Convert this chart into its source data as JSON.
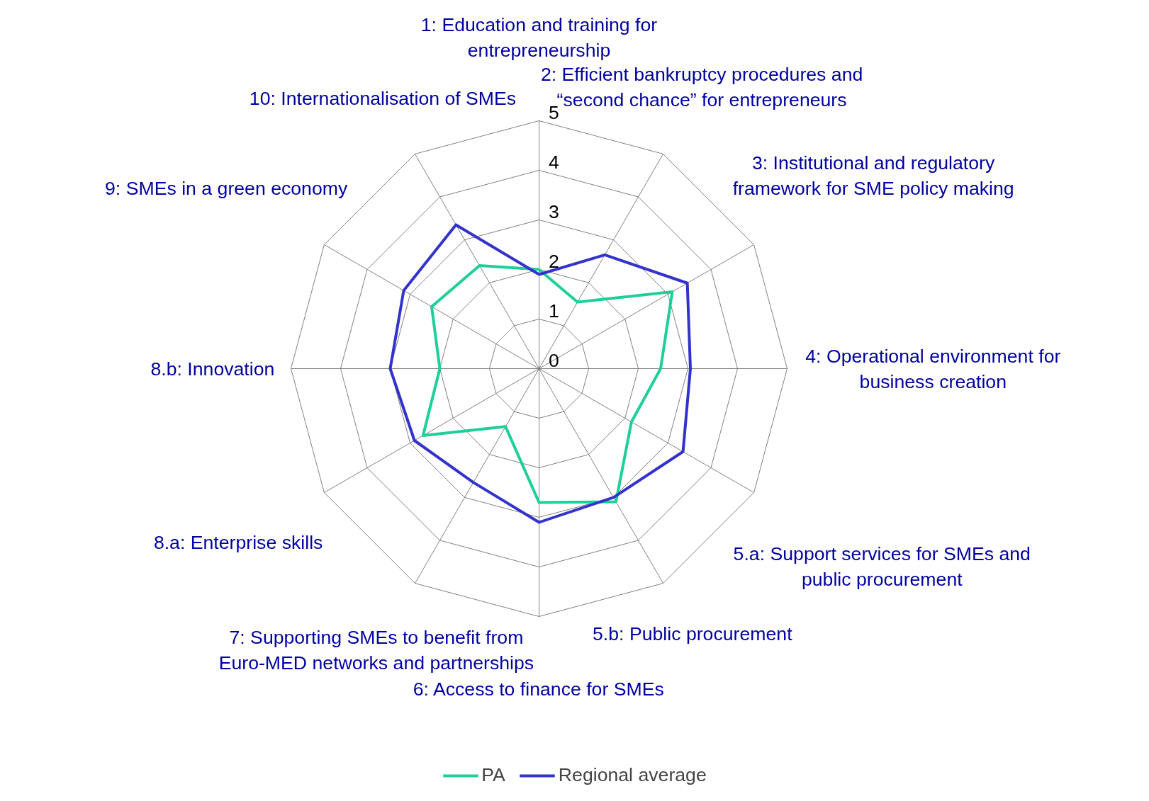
{
  "chart_data": {
    "type": "radar",
    "categories": [
      "1: Education and training for entrepreneurship",
      "2: Efficient bankruptcy procedures and “second chance” for entrepreneurs",
      "3: Institutional and regulatory framework for SME policy making",
      "4: Operational environment for business creation",
      "5.a: Support services for SMEs and public procurement",
      "5.b: Public procurement",
      "6: Access to finance for SMEs",
      "7: Supporting SMEs to benefit from Euro-MED networks and partnerships",
      "8.a: Enterprise skills",
      "8.b: Innovation",
      "9: SMEs in a green economy",
      "10: Internationalisation of SMEs"
    ],
    "series": [
      {
        "name": "PA",
        "color": "#1fcf9a",
        "values": [
          2.0,
          1.55,
          3.1,
          2.45,
          2.15,
          3.1,
          2.7,
          1.35,
          2.7,
          2.0,
          2.5,
          2.4
        ]
      },
      {
        "name": "Regional average",
        "color": "#3333cc",
        "values": [
          1.9,
          2.65,
          3.45,
          3.05,
          3.35,
          3.0,
          3.1,
          2.65,
          2.9,
          3.0,
          3.15,
          3.35
        ]
      }
    ],
    "ylim": [
      0,
      5
    ],
    "yticks": [
      0,
      1,
      2,
      3,
      4,
      5
    ],
    "grid": true,
    "legend": "bottom"
  }
}
